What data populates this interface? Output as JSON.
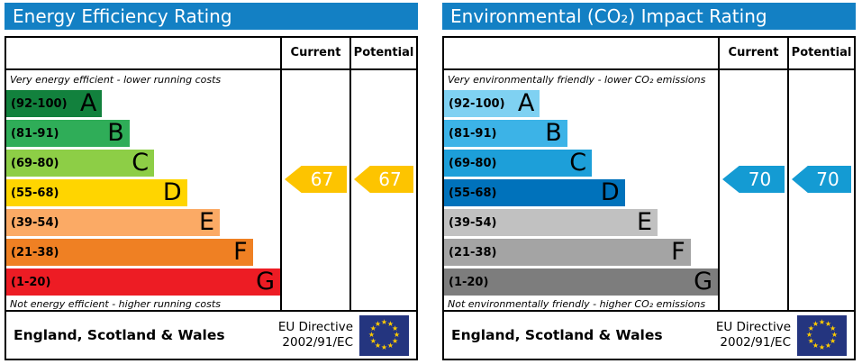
{
  "chart_data": [
    {
      "type": "bar",
      "title": "Energy Efficiency Rating",
      "orientation": "horizontal",
      "categories": [
        "A (92-100)",
        "B (81-91)",
        "C (69-80)",
        "D (55-68)",
        "E (39-54)",
        "F (21-38)",
        "G (1-20)"
      ],
      "values": [
        35,
        45,
        54,
        66,
        78,
        90,
        100
      ],
      "value_note": "bar lengths are % of column width; bands are fixed rating ranges",
      "current_rating": 67,
      "potential_rating": 67,
      "current_band": "D",
      "potential_band": "D",
      "top_label": "Very energy efficient - lower running costs",
      "bottom_label": "Not energy efficient - higher running costs",
      "columns": [
        "Current",
        "Potential"
      ]
    },
    {
      "type": "bar",
      "title": "Environmental (CO₂) Impact Rating",
      "orientation": "horizontal",
      "categories": [
        "A (92-100)",
        "B (81-91)",
        "C (69-80)",
        "D (55-68)",
        "E (39-54)",
        "F (21-38)",
        "G (1-20)"
      ],
      "values": [
        35,
        45,
        54,
        66,
        78,
        90,
        100
      ],
      "value_note": "bar lengths are % of column width; bands are fixed rating ranges",
      "current_rating": 70,
      "potential_rating": 70,
      "current_band": "C",
      "potential_band": "C",
      "top_label": "Very environmentally friendly - lower CO₂ emissions",
      "bottom_label": "Not environmentally friendly - higher CO₂ emissions",
      "columns": [
        "Current",
        "Potential"
      ]
    }
  ],
  "theme": {
    "header_blue": "#1380c4",
    "eu_flag_blue": "#24357f",
    "star_yellow": "#ffcc00"
  },
  "panels": [
    {
      "title": "Energy Efficiency Rating",
      "col_current": "Current",
      "col_potential": "Potential",
      "top_note": "Very energy efficient - lower running costs",
      "bottom_note": "Not energy efficient - higher running costs",
      "bands": [
        {
          "range": "(92-100)",
          "letter": "A",
          "color": "#12813d",
          "width_pct": 35
        },
        {
          "range": "(81-91)",
          "letter": "B",
          "color": "#2fad58",
          "width_pct": 45
        },
        {
          "range": "(69-80)",
          "letter": "C",
          "color": "#8dce46",
          "width_pct": 54
        },
        {
          "range": "(55-68)",
          "letter": "D",
          "color": "#ffd500",
          "width_pct": 66
        },
        {
          "range": "(39-54)",
          "letter": "E",
          "color": "#fbaa65",
          "width_pct": 78
        },
        {
          "range": "(21-38)",
          "letter": "F",
          "color": "#ef8023",
          "width_pct": 90
        },
        {
          "range": "(1-20)",
          "letter": "G",
          "color": "#ed1c24",
          "width_pct": 100
        }
      ],
      "current": {
        "value": "67",
        "color": "#fdc400"
      },
      "potential": {
        "value": "67",
        "color": "#fdc400"
      },
      "footer": {
        "region": "England, Scotland & Wales",
        "directive_line1": "EU Directive",
        "directive_line2": "2002/91/EC"
      }
    },
    {
      "title": "Environmental (CO₂) Impact Rating",
      "col_current": "Current",
      "col_potential": "Potential",
      "top_note": "Very environmentally friendly - lower CO₂ emissions",
      "bottom_note": "Not environmentally friendly - higher CO₂ emissions",
      "bands": [
        {
          "range": "(92-100)",
          "letter": "A",
          "color": "#7fd1f2",
          "width_pct": 35
        },
        {
          "range": "(81-91)",
          "letter": "B",
          "color": "#3cb3e7",
          "width_pct": 45
        },
        {
          "range": "(69-80)",
          "letter": "C",
          "color": "#1d9fd9",
          "width_pct": 54
        },
        {
          "range": "(55-68)",
          "letter": "D",
          "color": "#0072bb",
          "width_pct": 66
        },
        {
          "range": "(39-54)",
          "letter": "E",
          "color": "#c1c1c1",
          "width_pct": 78
        },
        {
          "range": "(21-38)",
          "letter": "F",
          "color": "#a4a4a4",
          "width_pct": 90
        },
        {
          "range": "(1-20)",
          "letter": "G",
          "color": "#7d7d7d",
          "width_pct": 100
        }
      ],
      "current": {
        "value": "70",
        "color": "#149bd3"
      },
      "potential": {
        "value": "70",
        "color": "#149bd3"
      },
      "footer": {
        "region": "England, Scotland & Wales",
        "directive_line1": "EU Directive",
        "directive_line2": "2002/91/EC"
      }
    }
  ]
}
